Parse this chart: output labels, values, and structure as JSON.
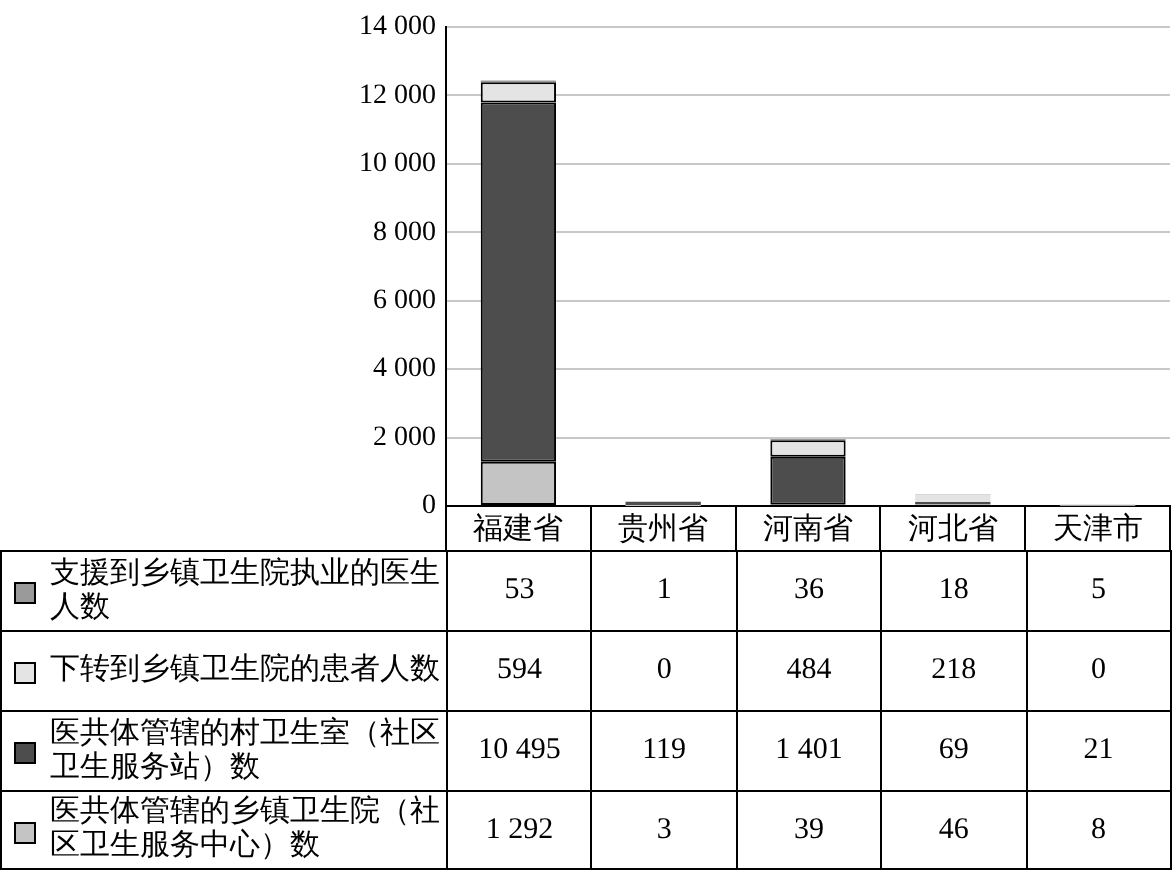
{
  "chart_data": {
    "type": "bar",
    "stacked": true,
    "categories": [
      "福建省",
      "贵州省",
      "河南省",
      "河北省",
      "天津市"
    ],
    "series": [
      {
        "name": "医共体管辖的乡镇卫生院（社区卫生服务中心）数",
        "color": "#c4c4c4",
        "values": [
          1292,
          3,
          39,
          46,
          8
        ],
        "value_labels": [
          "1 292",
          "3",
          "39",
          "46",
          "8"
        ]
      },
      {
        "name": "医共体管辖的村卫生室（社区卫生服务站）数",
        "color": "#4d4d4d",
        "values": [
          10495,
          119,
          1401,
          69,
          21
        ],
        "value_labels": [
          "10 495",
          "119",
          "1 401",
          "69",
          "21"
        ]
      },
      {
        "name": "下转到乡镇卫生院的患者人数",
        "color": "#e4e4e4",
        "values": [
          594,
          0,
          484,
          218,
          0
        ],
        "value_labels": [
          "594",
          "0",
          "484",
          "218",
          "0"
        ]
      },
      {
        "name": "支援到乡镇卫生院执业的医生人数",
        "color": "#9a9a9a",
        "values": [
          53,
          1,
          36,
          18,
          5
        ],
        "value_labels": [
          "53",
          "1",
          "36",
          "18",
          "5"
        ]
      }
    ],
    "ylim": [
      0,
      14000
    ],
    "yticks": [
      0,
      {
        "value": 2000,
        "label": "2 000"
      },
      {
        "value": 4000,
        "label": "4 000"
      },
      {
        "value": 6000,
        "label": "6 000"
      },
      {
        "value": 8000,
        "label": "8 000"
      },
      {
        "value": 10000,
        "label": "10 000"
      },
      {
        "value": 12000,
        "label": "12 000"
      },
      {
        "value": 14000,
        "label": "14 000"
      }
    ],
    "grid": "y",
    "legend": "bottom"
  }
}
